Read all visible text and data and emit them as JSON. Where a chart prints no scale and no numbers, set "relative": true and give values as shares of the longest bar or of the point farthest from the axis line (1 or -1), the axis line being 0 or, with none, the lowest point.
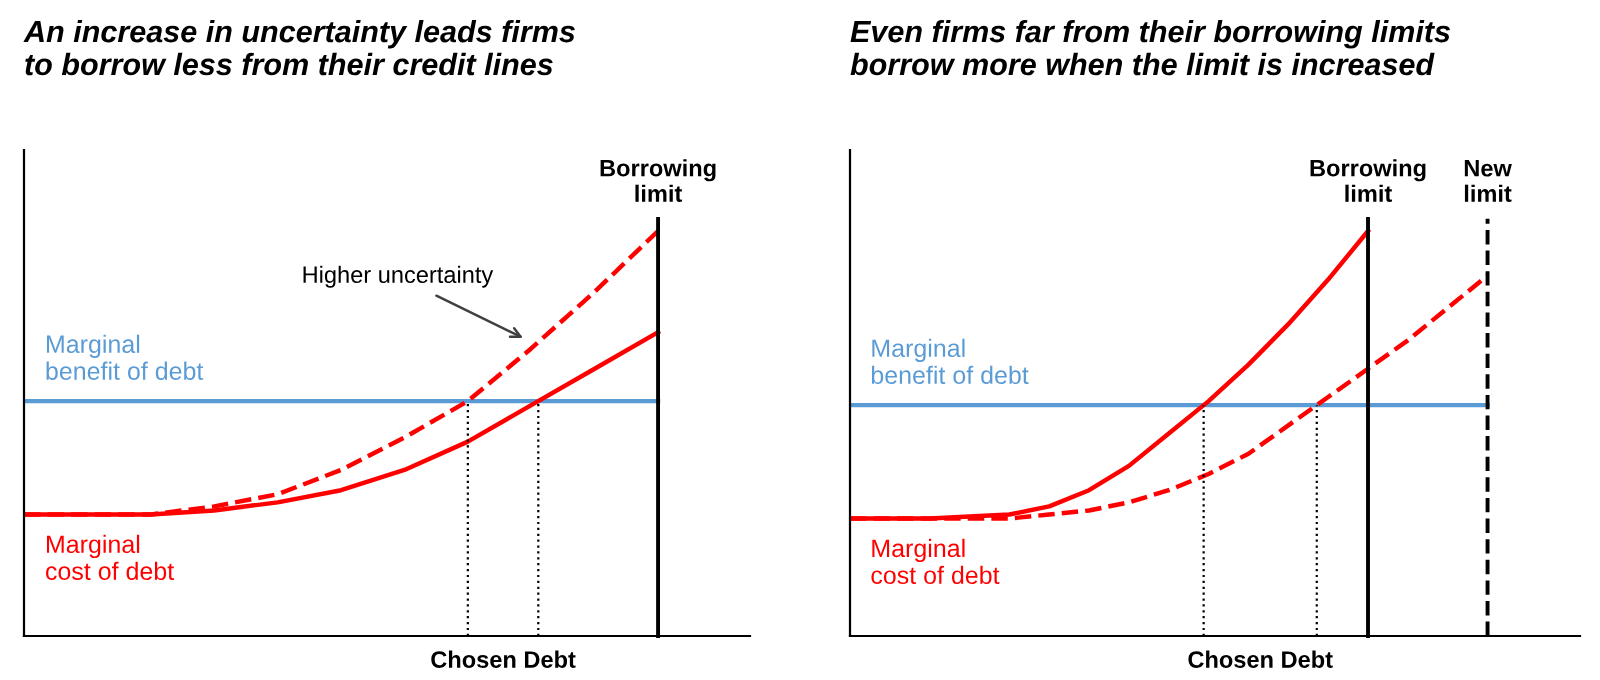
{
  "chart_data": [
    {
      "type": "line",
      "title": "An increase in uncertainty leads firms\nto borrow less from their credit lines",
      "xlabel": "Chosen Debt",
      "relative": true,
      "categories": [
        null,
        null,
        null,
        null,
        null,
        null,
        null,
        null,
        null,
        null,
        null
      ],
      "series": [
        {
          "name": "Marginal\nbenefit of debt",
          "color": "#5b9bd5",
          "values": [
            0.58,
            0.58,
            0.58,
            0.58,
            0.58,
            0.58,
            0.58,
            0.58,
            0.58,
            0.58,
            0.58
          ]
        },
        {
          "name": "Marginal\ncost of debt",
          "color": "#ff0000",
          "values": [
            0.3,
            0.3,
            0.3,
            0.31,
            0.33,
            0.36,
            0.41,
            0.48,
            0.57,
            0.66,
            0.75
          ]
        },
        {
          "name": "Higher uncertainty",
          "color": "#ff0000",
          "line_style": "dashed",
          "values": [
            0.3,
            0.3,
            0.3,
            0.32,
            0.35,
            0.41,
            0.49,
            0.58,
            0.71,
            0.85,
            1.0
          ]
        }
      ],
      "annotations": [
        "Borrowing\nlimit"
      ],
      "grid": false,
      "marker": "none"
    },
    {
      "type": "line",
      "title": "Even firms far from their borrowing limits\nborrow more when the limit is increased",
      "xlabel": "Chosen Debt",
      "relative": true,
      "categories": [
        null,
        null,
        null,
        null,
        null,
        null,
        null,
        null,
        null,
        null,
        null,
        null,
        null,
        null,
        null,
        null,
        null
      ],
      "series": [
        {
          "name": "Marginal\nbenefit of debt",
          "color": "#5b9bd5",
          "values": [
            0.57,
            0.57,
            0.57,
            0.57,
            0.57,
            0.57,
            0.57,
            0.57,
            0.57,
            0.57,
            0.57,
            0.57,
            0.57,
            0.57,
            0.57,
            0.57,
            0.57
          ]
        },
        {
          "name": "Marginal\ncost of debt",
          "color": "#ff0000",
          "values": [
            0.29,
            0.29,
            0.29,
            0.295,
            0.3,
            0.32,
            0.36,
            0.42,
            0.5,
            0.58,
            0.67,
            0.77,
            0.88,
            1.0,
            null,
            null,
            null
          ]
        },
        {
          "color": "#ff0000",
          "line_style": "dashed",
          "values": [
            0.29,
            0.29,
            0.29,
            0.29,
            0.29,
            0.3,
            0.31,
            0.33,
            0.36,
            0.4,
            0.45,
            0.52,
            0.59,
            0.66,
            0.73,
            0.81,
            0.89
          ]
        }
      ],
      "annotations": [
        "Borrowing\nlimit",
        "New\nlimit"
      ],
      "grid": false,
      "marker": "none"
    }
  ]
}
